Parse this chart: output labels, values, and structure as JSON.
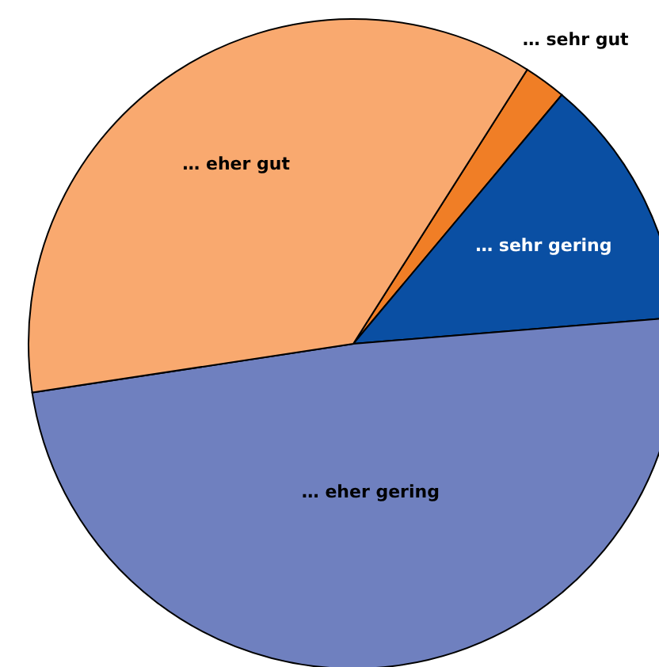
{
  "chart_data": {
    "type": "pie",
    "categories": [
      "… sehr gut",
      "… sehr gering",
      "… eher gering",
      "… eher gut"
    ],
    "values": [
      2.1,
      12.6,
      48.9,
      36.4
    ],
    "colors": [
      "#f07e26",
      "#0a4fa3",
      "#6f80bf",
      "#f9a96f"
    ]
  }
}
